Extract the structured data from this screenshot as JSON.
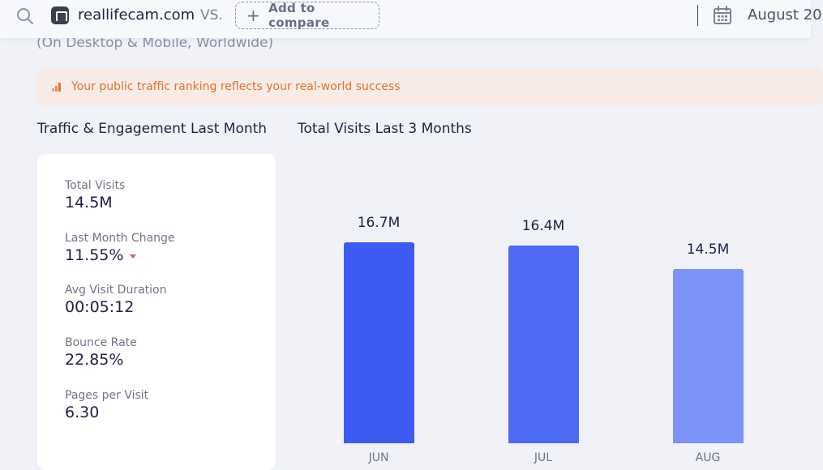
{
  "header": {
    "domain": "reallifecam.com",
    "vs": "VS.",
    "compare_label": "Add to compare",
    "date": "August 20"
  },
  "subtitle": "(On Desktop & Mobile, Worldwide)",
  "banner": {
    "text": "Your public traffic ranking reflects your real-world success"
  },
  "sections": {
    "left_title": "Traffic & Engagement Last Month",
    "right_title": "Total Visits Last 3 Months"
  },
  "metrics": [
    {
      "label": "Total Visits",
      "value": "14.5M"
    },
    {
      "label": "Last Month Change",
      "value": "11.55%"
    },
    {
      "label": "Avg Visit Duration",
      "value": "00:05:12"
    },
    {
      "label": "Bounce Rate",
      "value": "22.85%"
    },
    {
      "label": "Pages per Visit",
      "value": "6.30"
    }
  ],
  "colors": {
    "bar_jun": "#3d5af1",
    "bar_jul": "#4d6bf7",
    "bar_aug": "#7b93f8",
    "banner_text": "#e0742c",
    "change_down": "#e05b4c"
  },
  "chart_data": {
    "type": "bar",
    "categories": [
      "JUN",
      "JUL",
      "AUG"
    ],
    "values": [
      16.7,
      16.4,
      14.5
    ],
    "value_labels": [
      "16.7M",
      "16.4M",
      "14.5M"
    ],
    "title": "Total Visits Last 3 Months",
    "xlabel": "",
    "ylabel": "",
    "ylim": [
      0,
      16.7
    ],
    "grid": false
  }
}
